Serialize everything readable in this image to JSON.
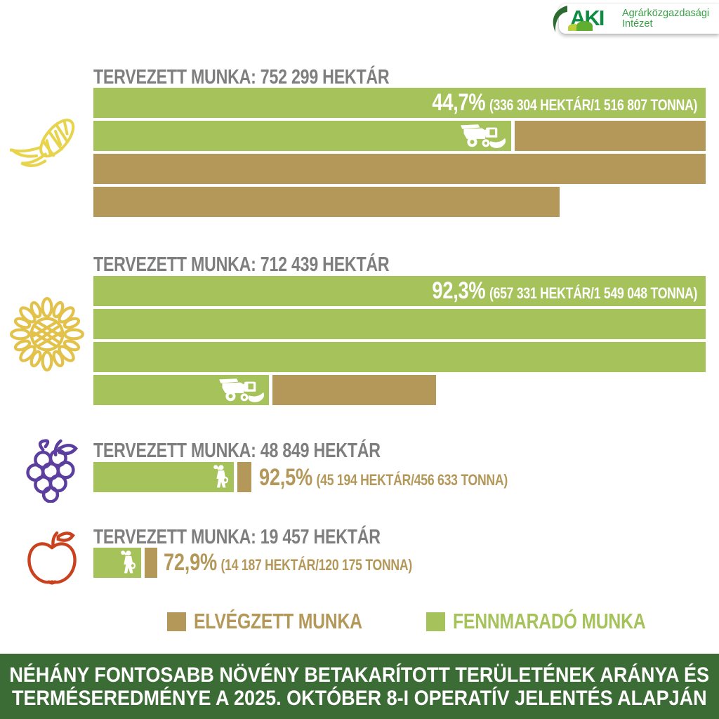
{
  "colors": {
    "green": "#a6c25b",
    "tan": "#b3985a",
    "gray_label": "#7e7e7e",
    "banner_bg": "#3c6c35",
    "logo_dark": "#0f8c44",
    "logo_text": "#3aa047",
    "mound_light": "#b9cf3c",
    "mound_dark": "#5fae2f",
    "corn_yellow": "#e8d44c",
    "sunflower_gold": "#e2c24b",
    "grape_purple": "#5b3e9e",
    "apple_red": "#c9411f"
  },
  "logo": {
    "acronym": "AKI",
    "name_line1": "Agrárközgazdasági",
    "name_line2": "Intézet"
  },
  "legend": {
    "completed_label": "ELVÉGZETT MUNKA",
    "remaining_label": "FENNMARADÓ MUNKA"
  },
  "footer": {
    "line1": "NÉHÁNY FONTOSABB NÖVÉNY BETAKARÍTOTT TERÜLETÉNEK ARÁNYA ÉS",
    "line2": "TERMÉSEREDMÉNYE A 2025. OKTÓBER 8-I OPERATÍV JELENTÉS ALAPJÁN"
  },
  "chart_data": {
    "type": "bar",
    "legend_position": "bottom",
    "units": {
      "area": "HEKTÁR",
      "yield": "TONNA"
    },
    "crops": [
      {
        "id": "corn",
        "icon": "corn-icon",
        "planned_label": "TERVEZETT MUNKA: 752 299 HEKTÁR",
        "planned_hectares": 752299,
        "percent_label": "44,7%",
        "percent_done": 44.7,
        "detail_label": "(336 304 HEKTÁR/1 516 807 TONNA)",
        "harvested_hectares": 336304,
        "yield_tonnes": 1516807,
        "rows": [
          {
            "segments": [
              {
                "color": "green",
                "width_pct": 100
              }
            ]
          },
          {
            "segments": [
              {
                "color": "green",
                "width_pct": 68.2,
                "icon": "combine-icon"
              },
              {
                "color": "tan",
                "width_pct": 31.2
              }
            ]
          },
          {
            "segments": [
              {
                "color": "tan",
                "width_pct": 100
              }
            ]
          },
          {
            "segments": [
              {
                "color": "tan",
                "width_pct": 76.2
              }
            ]
          }
        ]
      },
      {
        "id": "sunflower",
        "icon": "sunflower-icon",
        "planned_label": "TERVEZETT MUNKA: 712 439 HEKTÁR",
        "planned_hectares": 712439,
        "percent_label": "92,3%",
        "percent_done": 92.3,
        "detail_label": "(657 331 HEKTÁR/1 549 048 TONNA)",
        "harvested_hectares": 657331,
        "yield_tonnes": 1549048,
        "rows": [
          {
            "segments": [
              {
                "color": "green",
                "width_pct": 100
              }
            ]
          },
          {
            "segments": [
              {
                "color": "green",
                "width_pct": 100
              }
            ]
          },
          {
            "segments": [
              {
                "color": "green",
                "width_pct": 100
              }
            ]
          },
          {
            "segments": [
              {
                "color": "green",
                "width_pct": 28.7,
                "icon": "combine-icon"
              },
              {
                "color": "tan",
                "width_pct": 26.7
              }
            ]
          }
        ]
      },
      {
        "id": "grapes",
        "icon": "grapes-icon",
        "planned_label": "TERVEZETT MUNKA: 48 849 HEKTÁR",
        "planned_hectares": 48849,
        "percent_label": "92,5%",
        "percent_done": 92.5,
        "detail_label": "(45 194 HEKTÁR/456 633 TONNA)",
        "harvested_hectares": 45194,
        "yield_tonnes": 456633,
        "rows": [
          {
            "segments": [
              {
                "color": "green",
                "width_pct": 22.9,
                "icon": "picker-icon"
              },
              {
                "color": "tan",
                "width_pct": 2.3
              }
            ]
          }
        ]
      },
      {
        "id": "apple",
        "icon": "apple-icon",
        "planned_label": "TERVEZETT MUNKA: 19 457 HEKTÁR",
        "planned_hectares": 19457,
        "percent_label": "72,9%",
        "percent_done": 72.9,
        "detail_label": "(14 187 HEKTÁR/120 175 TONNA)",
        "harvested_hectares": 14187,
        "yield_tonnes": 120175,
        "rows": [
          {
            "segments": [
              {
                "color": "green",
                "width_pct": 7.8,
                "icon": "picker-icon"
              },
              {
                "color": "tan",
                "width_pct": 2.1
              }
            ]
          }
        ]
      }
    ]
  }
}
